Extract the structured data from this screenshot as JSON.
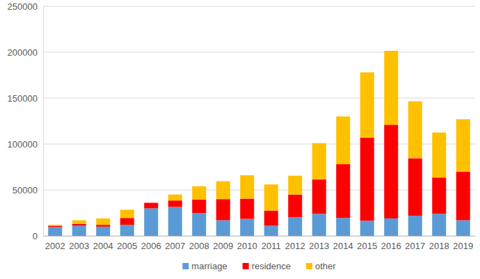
{
  "chart_data": {
    "type": "bar",
    "stacked": true,
    "grid": true,
    "legend": "bottom",
    "categories": [
      "2002",
      "2003",
      "2004",
      "2005",
      "2006",
      "2007",
      "2008",
      "2009",
      "2010",
      "2011",
      "2012",
      "2013",
      "2014",
      "2015",
      "2016",
      "2017",
      "2018",
      "2019"
    ],
    "series": [
      {
        "name": "marriage",
        "color": "#5b9bd5",
        "values": [
          9500,
          11000,
          10000,
          12000,
          30000,
          31500,
          25000,
          17000,
          18500,
          11000,
          20500,
          24000,
          19500,
          16500,
          19000,
          22000,
          24000,
          17000
        ]
      },
      {
        "name": "residence",
        "color": "#ff0000",
        "values": [
          1500,
          2000,
          2000,
          7500,
          6000,
          7000,
          14500,
          23000,
          22000,
          16500,
          24500,
          37500,
          58500,
          90500,
          102000,
          62500,
          39500,
          53000
        ]
      },
      {
        "name": "other",
        "color": "#ffc000",
        "values": [
          1000,
          4000,
          7000,
          9000,
          0,
          6500,
          14500,
          19500,
          25500,
          28500,
          20500,
          39500,
          52000,
          71000,
          80500,
          62000,
          49000,
          57000
        ]
      }
    ],
    "ylim": [
      0,
      250000
    ],
    "yticks": [
      0,
      50000,
      100000,
      150000,
      200000,
      250000
    ]
  }
}
